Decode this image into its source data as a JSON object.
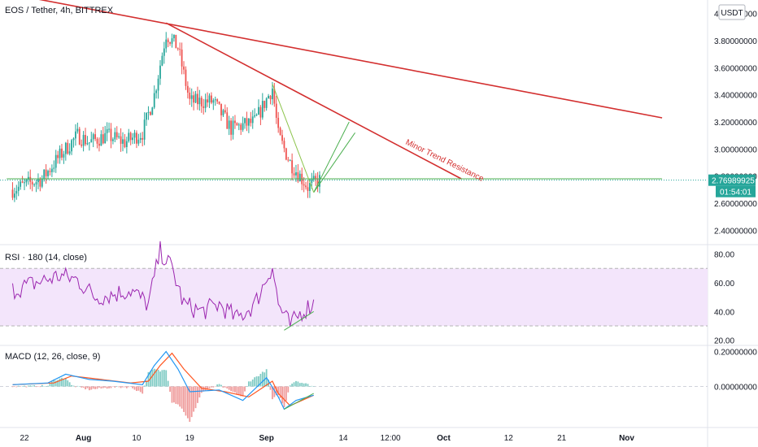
{
  "chart_data": [
    {
      "type": "candlestick",
      "title": "EOS / Tether, 4h, BITTREX",
      "currency_button": "USDT",
      "y_ticks": [
        "4.00000000",
        "3.80000000",
        "3.60000000",
        "3.40000000",
        "3.20000000",
        "3.00000000",
        "2.80000000",
        "2.60000000",
        "2.40000000"
      ],
      "ylim": [
        2.3,
        4.1
      ],
      "x_ticks": [
        "22",
        "Aug",
        "10",
        "19",
        "Sep",
        "14",
        "12:00",
        "Oct",
        "12",
        "21",
        "Nov"
      ],
      "last_price": "2.76989925",
      "countdown": "01:54:01",
      "last_price_color": "#26a69a",
      "up_color": "#26a69a",
      "down_color": "#ef5350",
      "annotation": "Minor Trend Resistance",
      "price_path": [
        {
          "x": "Jul 20",
          "y": 2.7
        },
        {
          "x": "Jul 25",
          "y": 2.78
        },
        {
          "x": "Jul 28",
          "y": 2.95
        },
        {
          "x": "Jul 31",
          "y": 3.1
        },
        {
          "x": "Aug 2",
          "y": 3.05
        },
        {
          "x": "Aug 5",
          "y": 3.1
        },
        {
          "x": "Aug 8",
          "y": 3.05
        },
        {
          "x": "Aug 11",
          "y": 3.12
        },
        {
          "x": "Aug 13",
          "y": 3.4
        },
        {
          "x": "Aug 15",
          "y": 3.85
        },
        {
          "x": "Aug 17",
          "y": 3.75
        },
        {
          "x": "Aug 19",
          "y": 3.35
        },
        {
          "x": "Aug 23",
          "y": 3.35
        },
        {
          "x": "Aug 26",
          "y": 3.15
        },
        {
          "x": "Aug 30",
          "y": 3.2
        },
        {
          "x": "Sep 2",
          "y": 3.45
        },
        {
          "x": "Sep 3",
          "y": 3.1
        },
        {
          "x": "Sep 5",
          "y": 2.9
        },
        {
          "x": "Sep 8",
          "y": 2.72
        },
        {
          "x": "Sep 10",
          "y": 2.77
        }
      ],
      "trend_lines": [
        {
          "color": "#d32f2f",
          "from": {
            "x": "Jul 19",
            "y": 4.15
          },
          "to": {
            "x": "Nov 7",
            "y": 3.23
          }
        },
        {
          "color": "#d32f2f",
          "from": {
            "x": "Aug 15",
            "y": 3.93
          },
          "to": {
            "x": "Oct 4",
            "y": 2.78
          }
        },
        {
          "color": "#4caf50",
          "from": {
            "x": "Jul 19",
            "y": 2.78
          },
          "to": {
            "x": "Nov 7",
            "y": 2.78
          }
        },
        {
          "color": "#4caf50",
          "from": {
            "x": "Sep 9",
            "y": 2.68
          },
          "to": {
            "x": "Sep 15",
            "y": 3.2
          }
        },
        {
          "color": "#4caf50",
          "from": {
            "x": "Sep 9",
            "y": 2.68
          },
          "to": {
            "x": "Sep 16",
            "y": 3.12
          }
        },
        {
          "color": "#8bc34a",
          "from": {
            "x": "Sep 2",
            "y": 3.48
          },
          "to": {
            "x": "Sep 9",
            "y": 2.68
          }
        }
      ]
    },
    {
      "type": "line",
      "title": "RSI · 180 (14, close)",
      "y_ticks": [
        "80.00",
        "60.00",
        "40.00",
        "20.00"
      ],
      "ylim": [
        17,
        86
      ],
      "band": [
        30,
        70
      ],
      "series": [
        {
          "color": "#9c27b0",
          "values": [
            {
              "x": "Jul 20",
              "y": 55
            },
            {
              "x": "Jul 24",
              "y": 60
            },
            {
              "x": "Jul 28",
              "y": 65
            },
            {
              "x": "Jul 31",
              "y": 62
            },
            {
              "x": "Aug 3",
              "y": 50
            },
            {
              "x": "Aug 6",
              "y": 52
            },
            {
              "x": "Aug 9",
              "y": 55
            },
            {
              "x": "Aug 12",
              "y": 45
            },
            {
              "x": "Aug 14",
              "y": 82
            },
            {
              "x": "Aug 16",
              "y": 70
            },
            {
              "x": "Aug 18",
              "y": 45
            },
            {
              "x": "Aug 21",
              "y": 40
            },
            {
              "x": "Aug 24",
              "y": 45
            },
            {
              "x": "Aug 27",
              "y": 35
            },
            {
              "x": "Aug 30",
              "y": 45
            },
            {
              "x": "Sep 2",
              "y": 72
            },
            {
              "x": "Sep 3",
              "y": 45
            },
            {
              "x": "Sep 5",
              "y": 30
            },
            {
              "x": "Sep 7",
              "y": 40
            },
            {
              "x": "Sep 9",
              "y": 46
            }
          ]
        },
        {
          "color": "#4caf50",
          "values": [
            {
              "x": "Sep 4",
              "y": 27
            },
            {
              "x": "Sep 9",
              "y": 40
            }
          ]
        }
      ]
    },
    {
      "type": "line",
      "title": "MACD (12, 26, close, 9)",
      "y_ticks": [
        "0.20000000",
        "0.00000000"
      ],
      "ylim": [
        -0.23,
        0.23
      ],
      "series": [
        {
          "color": "#2196f3",
          "values": [
            {
              "x": "Jul 20",
              "y": 0.01
            },
            {
              "x": "Jul 26",
              "y": 0.02
            },
            {
              "x": "Jul 29",
              "y": 0.07
            },
            {
              "x": "Aug 2",
              "y": 0.04
            },
            {
              "x": "Aug 6",
              "y": 0.03
            },
            {
              "x": "Aug 11",
              "y": 0.01
            },
            {
              "x": "Aug 13",
              "y": 0.12
            },
            {
              "x": "Aug 15",
              "y": 0.2
            },
            {
              "x": "Aug 17",
              "y": 0.1
            },
            {
              "x": "Aug 19",
              "y": -0.03
            },
            {
              "x": "Aug 24",
              "y": -0.02
            },
            {
              "x": "Aug 28",
              "y": -0.08
            },
            {
              "x": "Sep 1",
              "y": 0.05
            },
            {
              "x": "Sep 3",
              "y": -0.06
            },
            {
              "x": "Sep 4",
              "y": -0.13
            },
            {
              "x": "Sep 6",
              "y": -0.08
            },
            {
              "x": "Sep 9",
              "y": -0.05
            }
          ]
        },
        {
          "color": "#ff5722",
          "values": [
            {
              "x": "Jul 20",
              "y": 0.01
            },
            {
              "x": "Jul 27",
              "y": 0.02
            },
            {
              "x": "Jul 30",
              "y": 0.06
            },
            {
              "x": "Aug 4",
              "y": 0.04
            },
            {
              "x": "Aug 9",
              "y": 0.02
            },
            {
              "x": "Aug 12",
              "y": 0.03
            },
            {
              "x": "Aug 14",
              "y": 0.12
            },
            {
              "x": "Aug 16",
              "y": 0.19
            },
            {
              "x": "Aug 18",
              "y": 0.1
            },
            {
              "x": "Aug 21",
              "y": -0.01
            },
            {
              "x": "Aug 25",
              "y": -0.03
            },
            {
              "x": "Aug 29",
              "y": -0.06
            },
            {
              "x": "Sep 2",
              "y": 0.03
            },
            {
              "x": "Sep 3",
              "y": -0.04
            },
            {
              "x": "Sep 5",
              "y": -0.11
            },
            {
              "x": "Sep 7",
              "y": -0.08
            },
            {
              "x": "Sep 9",
              "y": -0.05
            }
          ]
        },
        {
          "color": "#4caf50",
          "values": [
            {
              "x": "Sep 4",
              "y": -0.13
            },
            {
              "x": "Sep 9",
              "y": -0.04
            }
          ]
        }
      ]
    }
  ]
}
